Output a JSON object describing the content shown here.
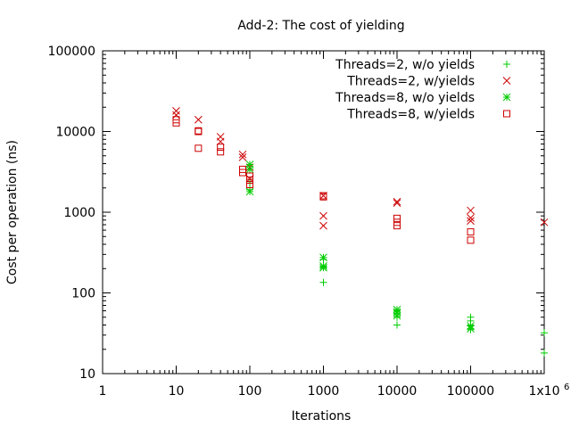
{
  "chart_data": {
    "type": "scatter",
    "title": "Add-2: The cost of yielding",
    "xlabel": "Iterations",
    "ylabel": "Cost per operation (ns)",
    "xscale": "log",
    "yscale": "log",
    "xlim": [
      1,
      1000000
    ],
    "ylim": [
      10,
      100000
    ],
    "x_ticks": [
      1,
      10,
      100,
      1000,
      10000,
      100000,
      1000000
    ],
    "x_tick_labels": [
      "1",
      "10",
      "100",
      "1000",
      "10000",
      "100000",
      "1x10"
    ],
    "x_tick_last_exponent": "6",
    "y_ticks": [
      10,
      100,
      1000,
      10000,
      100000
    ],
    "y_tick_labels": [
      "10",
      "100",
      "1000",
      "10000",
      "100000"
    ],
    "grid": false,
    "legend_position": "top-right",
    "series": [
      {
        "name": "Threads=2, w/o yields",
        "marker": "plus",
        "color": "#00cc00",
        "points": [
          [
            100,
            1900
          ],
          [
            100,
            2300
          ],
          [
            1000,
            135
          ],
          [
            1000,
            210
          ],
          [
            1000,
            260
          ],
          [
            10000,
            40
          ],
          [
            10000,
            50
          ],
          [
            10000,
            55
          ],
          [
            10000,
            60
          ],
          [
            100000,
            35
          ],
          [
            100000,
            40
          ],
          [
            100000,
            45
          ],
          [
            100000,
            50
          ],
          [
            1000000,
            18
          ],
          [
            1000000,
            32
          ]
        ]
      },
      {
        "name": "Threads=2, w/yields",
        "marker": "cross",
        "color": "#cc0000",
        "points": [
          [
            10,
            16000
          ],
          [
            10,
            18000
          ],
          [
            20,
            14000
          ],
          [
            40,
            7500
          ],
          [
            40,
            8600
          ],
          [
            80,
            4800
          ],
          [
            80,
            5200
          ],
          [
            100,
            2600
          ],
          [
            100,
            3600
          ],
          [
            1000,
            680
          ],
          [
            1000,
            900
          ],
          [
            1000,
            1600
          ],
          [
            10000,
            1300
          ],
          [
            10000,
            1350
          ],
          [
            100000,
            780
          ],
          [
            100000,
            850
          ],
          [
            100000,
            1050
          ],
          [
            1000000,
            750
          ]
        ]
      },
      {
        "name": "Threads=8, w/o yields",
        "marker": "star",
        "color": "#00cc00",
        "points": [
          [
            100,
            1800
          ],
          [
            100,
            3400
          ],
          [
            100,
            3900
          ],
          [
            1000,
            205
          ],
          [
            1000,
            215
          ],
          [
            1000,
            275
          ],
          [
            10000,
            52
          ],
          [
            10000,
            58
          ],
          [
            10000,
            62
          ],
          [
            100000,
            36
          ],
          [
            100000,
            39
          ]
        ]
      },
      {
        "name": "Threads=8, w/yields",
        "marker": "square",
        "color": "#cc0000",
        "points": [
          [
            10,
            12800
          ],
          [
            10,
            14000
          ],
          [
            20,
            6200
          ],
          [
            20,
            10000
          ],
          [
            20,
            10200
          ],
          [
            40,
            5600
          ],
          [
            40,
            6400
          ],
          [
            80,
            3100
          ],
          [
            80,
            3400
          ],
          [
            100,
            2200
          ],
          [
            100,
            2500
          ],
          [
            100,
            2800
          ],
          [
            1000,
            1550
          ],
          [
            1000,
            1600
          ],
          [
            10000,
            680
          ],
          [
            10000,
            750
          ],
          [
            10000,
            840
          ],
          [
            100000,
            450
          ],
          [
            100000,
            570
          ]
        ]
      }
    ]
  }
}
